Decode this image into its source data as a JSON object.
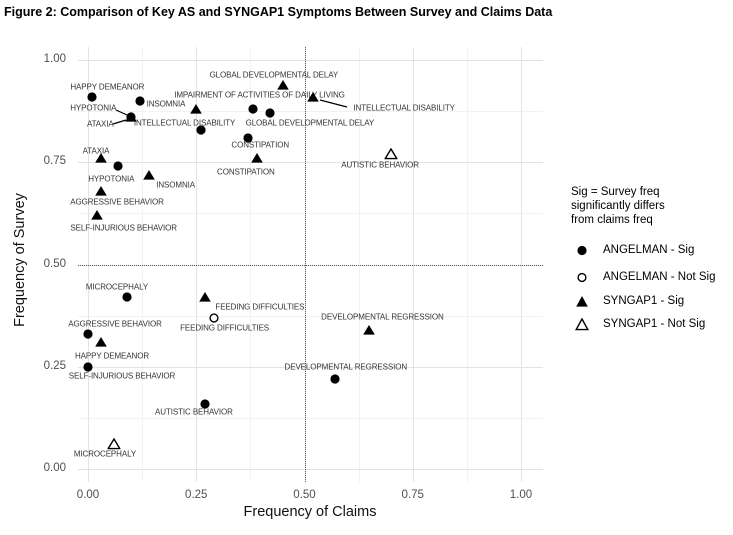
{
  "figure": {
    "title": "Figure 2: Comparison of Key AS and SYNGAP1 Symptoms Between Survey and Claims Data"
  },
  "legend": {
    "title_lines": [
      "Sig = Survey freq",
      "significantly differs",
      "from claims freq"
    ],
    "items": [
      {
        "label": "ANGELMAN - Sig",
        "marker": "circle",
        "filled": true
      },
      {
        "label": "ANGELMAN - Not Sig",
        "marker": "circle",
        "filled": false
      },
      {
        "label": "SYNGAP1 - Sig",
        "marker": "triangle",
        "filled": true
      },
      {
        "label": "SYNGAP1 - Not Sig",
        "marker": "triangle",
        "filled": false
      }
    ]
  },
  "chart_data": {
    "type": "scatter",
    "title": "Figure 2: Comparison of Key AS and SYNGAP1 Symptoms Between Survey and Claims Data",
    "xlabel": "Frequency of Claims",
    "ylabel": "Frequency of Survey",
    "xlim": [
      0,
      1
    ],
    "ylim": [
      0,
      1
    ],
    "grid": "major+minor",
    "legend_position": "right",
    "marker_color": "#000000",
    "ticks": {
      "values": [
        0,
        0.25,
        0.5,
        0.75,
        1
      ],
      "labels": [
        "0.00",
        "0.25",
        "0.50",
        "0.75",
        "1.00"
      ],
      "minor": [
        0.125,
        0.375,
        0.625,
        0.875
      ]
    },
    "reference_lines": {
      "x": 0.5,
      "y": 0.5,
      "style": "dotted"
    },
    "series": [
      {
        "name": "ANGELMAN - Sig",
        "marker": "circle",
        "filled": true,
        "points": [
          {
            "symptom": "HAPPY DEMEANOR",
            "claims": 0.01,
            "survey": 0.91,
            "label": {
              "dx": 15,
              "dy": -10
            }
          },
          {
            "symptom": "INSOMNIA",
            "claims": 0.12,
            "survey": 0.9,
            "label": {
              "dx": 26,
              "dy": 3
            }
          },
          {
            "symptom": "ATAXIA",
            "claims": 0.1,
            "survey": 0.86,
            "label": {
              "dx": -31,
              "dy": 7
            },
            "leader": [
              113,
              124,
              126,
              120
            ]
          },
          {
            "symptom": "IMPAIRMENT OF ACTIVITIES OF DAILY LIVING",
            "claims": 0.38,
            "survey": 0.88,
            "label": {
              "dx": 7,
              "dy": -14
            }
          },
          {
            "symptom": "GLOBAL DEVELOPMENTAL DELAY",
            "claims": 0.42,
            "survey": 0.87,
            "label": {
              "dx": 40,
              "dy": 10
            }
          },
          {
            "symptom": "INTELLECTUAL DISABILITY",
            "claims": 0.26,
            "survey": 0.83,
            "label": {
              "dx": -16,
              "dy": -7
            }
          },
          {
            "symptom": "CONSTIPATION",
            "claims": 0.37,
            "survey": 0.81,
            "label": {
              "dx": 12,
              "dy": 7
            }
          },
          {
            "symptom": "HYPOTONIA",
            "claims": 0.07,
            "survey": 0.74,
            "label": {
              "dx": -7,
              "dy": 13
            }
          },
          {
            "symptom": "MICROCEPHALY",
            "claims": 0.09,
            "survey": 0.42,
            "label": {
              "dx": -10,
              "dy": -10
            }
          },
          {
            "symptom": "AGGRESSIVE BEHAVIOR",
            "claims": 0.0,
            "survey": 0.33,
            "label": {
              "dx": 27,
              "dy": -10
            }
          },
          {
            "symptom": "SELF-INJURIOUS BEHAVIOR",
            "claims": 0.0,
            "survey": 0.25,
            "label": {
              "dx": 34,
              "dy": 9
            }
          },
          {
            "symptom": "DEVELOPMENTAL REGRESSION",
            "claims": 0.57,
            "survey": 0.22,
            "label": {
              "dx": 11,
              "dy": -12
            }
          },
          {
            "symptom": "AUTISTIC BEHAVIOR",
            "claims": 0.27,
            "survey": 0.16,
            "label": {
              "dx": -11,
              "dy": 8
            }
          }
        ]
      },
      {
        "name": "ANGELMAN - Not Sig",
        "marker": "circle",
        "filled": false,
        "points": [
          {
            "symptom": "FEEDING DIFFICULTIES",
            "claims": 0.29,
            "survey": 0.37,
            "label": {
              "dx": 11,
              "dy": 10
            }
          }
        ]
      },
      {
        "name": "SYNGAP1 - Sig",
        "marker": "triangle",
        "filled": true,
        "points": [
          {
            "symptom": "GLOBAL DEVELOPMENTAL DELAY",
            "claims": 0.45,
            "survey": 0.94,
            "label": {
              "dx": -9,
              "dy": -10
            }
          },
          {
            "symptom": "INTELLECTUAL DISABILITY",
            "claims": 0.52,
            "survey": 0.91,
            "label": {
              "dx": 91,
              "dy": 11
            },
            "leader": [
              320,
              100,
              347,
              107
            ]
          },
          {
            "symptom": "IMPAIRMENT OF ACTIVITIES OF DAILY LIVING",
            "claims": 0.25,
            "survey": 0.88,
            "label": null
          },
          {
            "symptom": "HYPOTONIA",
            "claims": 0.1,
            "survey": 0.86,
            "label": {
              "dx": -38,
              "dy": -9
            },
            "leader": [
              116,
              110,
              127,
              115
            ]
          },
          {
            "symptom": "ATAXIA",
            "claims": 0.03,
            "survey": 0.76,
            "label": {
              "dx": -5,
              "dy": -7
            }
          },
          {
            "symptom": "CONSTIPATION",
            "claims": 0.39,
            "survey": 0.76,
            "label": {
              "dx": -11,
              "dy": 14
            }
          },
          {
            "symptom": "INSOMNIA",
            "claims": 0.14,
            "survey": 0.72,
            "label": {
              "dx": 27,
              "dy": 10
            }
          },
          {
            "symptom": "AGGRESSIVE BEHAVIOR",
            "claims": 0.03,
            "survey": 0.68,
            "label": {
              "dx": 16,
              "dy": 11
            }
          },
          {
            "symptom": "SELF-INJURIOUS BEHAVIOR",
            "claims": 0.02,
            "survey": 0.62,
            "label": {
              "dx": 27,
              "dy": 13
            }
          },
          {
            "symptom": "FEEDING DIFFICULTIES",
            "claims": 0.27,
            "survey": 0.42,
            "label": {
              "dx": 55,
              "dy": 10
            }
          },
          {
            "symptom": "DEVELOPMENTAL REGRESSION",
            "claims": 0.65,
            "survey": 0.34,
            "label": {
              "dx": 13,
              "dy": -13
            }
          },
          {
            "symptom": "HAPPY DEMEANOR",
            "claims": 0.03,
            "survey": 0.31,
            "label": {
              "dx": 11,
              "dy": 14
            }
          }
        ]
      },
      {
        "name": "SYNGAP1 - Not Sig",
        "marker": "triangle",
        "filled": false,
        "points": [
          {
            "symptom": "AUTISTIC BEHAVIOR",
            "claims": 0.7,
            "survey": 0.77,
            "label": {
              "dx": -11,
              "dy": 11
            }
          },
          {
            "symptom": "MICROCEPHALY",
            "claims": 0.06,
            "survey": 0.06,
            "label": {
              "dx": -9,
              "dy": 10
            }
          }
        ]
      }
    ]
  }
}
